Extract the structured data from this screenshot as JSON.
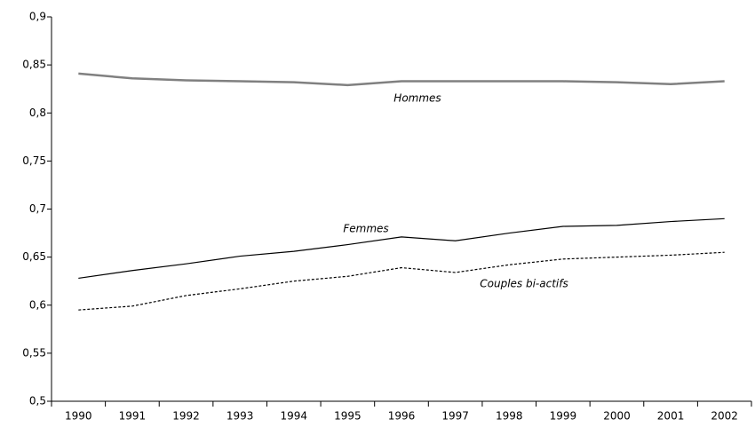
{
  "chart_data": {
    "type": "line",
    "categories": [
      "1990",
      "1991",
      "1992",
      "1993",
      "1994",
      "1995",
      "1996",
      "1997",
      "1998",
      "1999",
      "2000",
      "2001",
      "2002"
    ],
    "series": [
      {
        "name": "Hommes",
        "color": "#808080",
        "values": [
          0.841,
          0.836,
          0.834,
          0.833,
          0.832,
          0.829,
          0.833,
          0.833,
          0.833,
          0.833,
          0.832,
          0.83,
          0.833
        ]
      },
      {
        "name": "Femmes",
        "color": "#000000",
        "values": [
          0.628,
          0.636,
          0.643,
          0.651,
          0.656,
          0.663,
          0.671,
          0.667,
          0.675,
          0.682,
          0.683,
          0.687,
          0.69
        ]
      },
      {
        "name": "Couples bi-actifs",
        "color": "#000000",
        "values": [
          0.595,
          0.599,
          0.61,
          0.617,
          0.625,
          0.63,
          0.639,
          0.634,
          0.642,
          0.648,
          0.65,
          0.652,
          0.655
        ]
      }
    ],
    "ylim": [
      0.5,
      0.9
    ],
    "yticks": [
      {
        "value": 0.5,
        "label": "0,5"
      },
      {
        "value": 0.55,
        "label": "0,55"
      },
      {
        "value": 0.6,
        "label": "0,6"
      },
      {
        "value": 0.65,
        "label": "0,65"
      },
      {
        "value": 0.7,
        "label": "0,7"
      },
      {
        "value": 0.75,
        "label": "0,75"
      },
      {
        "value": 0.8,
        "label": "0,8"
      },
      {
        "value": 0.85,
        "label": "0,85"
      },
      {
        "value": 0.9,
        "label": "0,9"
      }
    ],
    "grid": false
  }
}
